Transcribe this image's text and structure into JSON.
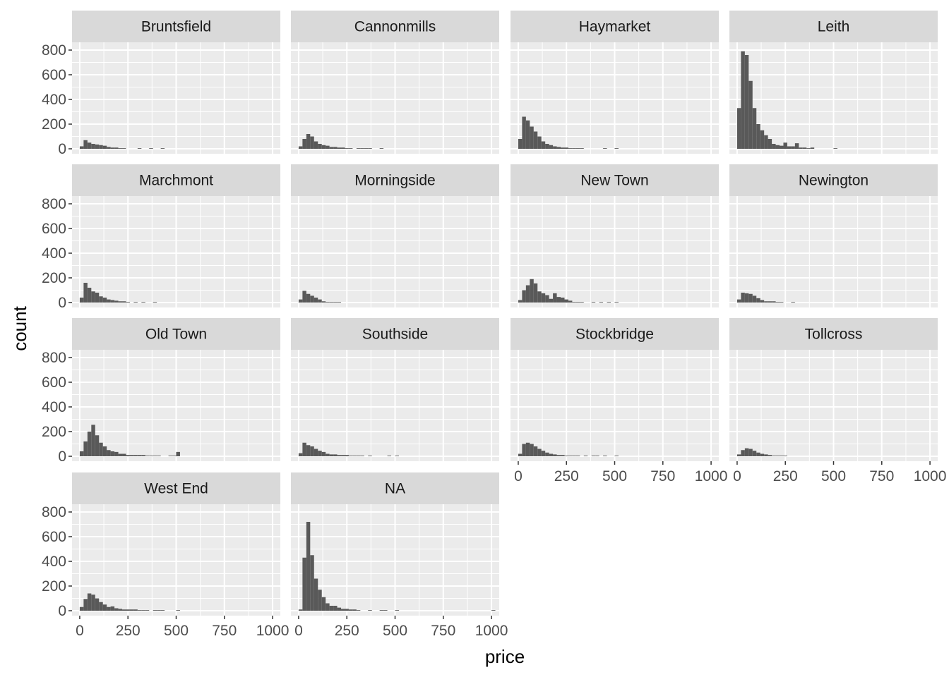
{
  "colors": {
    "panel_background": "#ebebeb",
    "grid_major": "#ffffff",
    "strip_background": "#d9d9d9",
    "bar_fill": "#595959",
    "tick_label": "#4d4d4d",
    "axis_title": "#000000"
  },
  "chart_data": {
    "type": "bar",
    "title": "",
    "xlabel": "price",
    "ylabel": "count",
    "xlim": [
      -40,
      1040
    ],
    "ylim": [
      0,
      800
    ],
    "x_ticks": [
      0,
      250,
      500,
      750,
      1000
    ],
    "x_tick_labels": [
      "0",
      "250",
      "500",
      "750",
      "1000"
    ],
    "y_ticks": [
      0,
      200,
      400,
      600,
      800
    ],
    "y_tick_labels": [
      "0",
      "200",
      "400",
      "600",
      "800"
    ],
    "grid": true,
    "bin_width": 20,
    "bin_centers": [
      10,
      30,
      50,
      70,
      90,
      110,
      130,
      150,
      170,
      190,
      210,
      230,
      250,
      270,
      290,
      310,
      330,
      350,
      370,
      390,
      410,
      430,
      450,
      470,
      490,
      510
    ],
    "panels": [
      {
        "name": "Bruntsfield",
        "values": [
          20,
          70,
          50,
          40,
          35,
          30,
          25,
          15,
          10,
          10,
          5,
          5,
          0,
          0,
          0,
          5,
          0,
          0,
          5,
          0,
          0,
          5,
          0,
          0,
          0,
          0
        ]
      },
      {
        "name": "Cannonmills",
        "values": [
          20,
          80,
          120,
          100,
          60,
          40,
          30,
          25,
          15,
          15,
          10,
          10,
          5,
          5,
          0,
          5,
          5,
          5,
          5,
          0,
          0,
          5,
          0,
          0,
          0,
          0
        ]
      },
      {
        "name": "Haymarket",
        "values": [
          80,
          260,
          230,
          180,
          140,
          100,
          60,
          40,
          30,
          20,
          15,
          10,
          10,
          5,
          5,
          5,
          5,
          0,
          0,
          0,
          0,
          0,
          5,
          0,
          0,
          5
        ]
      },
      {
        "name": "Leith",
        "values": [
          330,
          790,
          760,
          550,
          330,
          200,
          150,
          110,
          80,
          40,
          30,
          25,
          50,
          20,
          20,
          45,
          10,
          10,
          5,
          10,
          0,
          0,
          0,
          0,
          0,
          5
        ]
      },
      {
        "name": "Marchmont",
        "values": [
          40,
          160,
          120,
          90,
          80,
          50,
          40,
          25,
          20,
          15,
          10,
          10,
          5,
          0,
          5,
          0,
          5,
          0,
          0,
          5,
          0,
          0,
          0,
          0,
          0,
          0
        ]
      },
      {
        "name": "Morningside",
        "values": [
          25,
          95,
          70,
          55,
          40,
          25,
          10,
          5,
          5,
          5,
          5,
          0,
          0,
          0,
          0,
          0,
          0,
          0,
          0,
          0,
          0,
          0,
          0,
          0,
          0,
          0
        ]
      },
      {
        "name": "New Town",
        "values": [
          20,
          100,
          140,
          190,
          155,
          90,
          75,
          60,
          30,
          75,
          45,
          40,
          25,
          15,
          5,
          5,
          5,
          0,
          0,
          5,
          0,
          5,
          0,
          5,
          0,
          5
        ]
      },
      {
        "name": "Newington",
        "values": [
          25,
          80,
          75,
          70,
          55,
          35,
          20,
          10,
          10,
          10,
          5,
          5,
          0,
          0,
          5,
          0,
          0,
          0,
          0,
          0,
          0,
          0,
          0,
          0,
          0,
          0
        ]
      },
      {
        "name": "Old Town",
        "values": [
          40,
          120,
          200,
          255,
          170,
          110,
          80,
          50,
          40,
          35,
          20,
          20,
          10,
          10,
          10,
          10,
          10,
          5,
          5,
          5,
          5,
          0,
          0,
          5,
          5,
          35
        ]
      },
      {
        "name": "Southside",
        "values": [
          25,
          110,
          90,
          80,
          60,
          45,
          35,
          20,
          15,
          15,
          10,
          10,
          10,
          5,
          5,
          5,
          5,
          0,
          5,
          0,
          0,
          0,
          0,
          5,
          0,
          5
        ]
      },
      {
        "name": "Stockbridge",
        "values": [
          20,
          100,
          110,
          100,
          80,
          60,
          45,
          30,
          20,
          15,
          10,
          10,
          5,
          5,
          5,
          5,
          0,
          5,
          0,
          5,
          5,
          0,
          5,
          0,
          0,
          5
        ]
      },
      {
        "name": "Tollcross",
        "values": [
          15,
          50,
          65,
          60,
          45,
          30,
          20,
          15,
          10,
          5,
          5,
          5,
          5,
          0,
          0,
          0,
          0,
          0,
          0,
          0,
          0,
          0,
          0,
          0,
          0,
          0
        ]
      },
      {
        "name": "West End",
        "values": [
          30,
          95,
          140,
          130,
          100,
          70,
          50,
          30,
          35,
          20,
          15,
          10,
          10,
          10,
          10,
          5,
          5,
          5,
          0,
          5,
          5,
          5,
          0,
          0,
          0,
          5
        ]
      },
      {
        "name": "NA",
        "values": [
          10,
          430,
          720,
          450,
          260,
          170,
          110,
          60,
          40,
          40,
          25,
          15,
          15,
          10,
          10,
          5,
          0,
          0,
          5,
          0,
          0,
          5,
          5,
          0,
          0,
          5
        ],
        "extra_bins": [
          {
            "x": 1010,
            "value": 5
          }
        ]
      }
    ]
  }
}
